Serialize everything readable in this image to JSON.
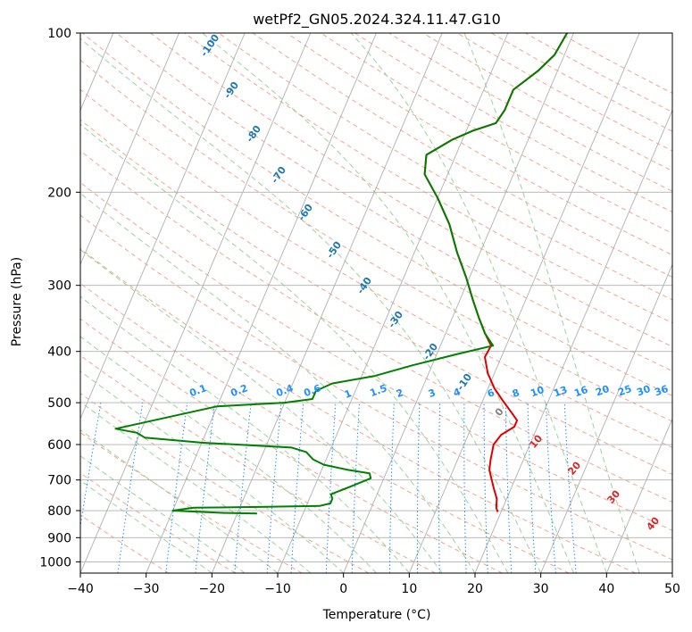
{
  "chart_data": {
    "type": "line",
    "title": "wetPf2_GN05.2024.324.11.47.G10",
    "xlabel": "Temperature (°C)",
    "ylabel": "Pressure (hPa)",
    "xlim": [
      -40,
      50
    ],
    "ylim": [
      1050,
      100
    ],
    "yscale": "log",
    "xticks": [
      -40,
      -30,
      -20,
      -10,
      0,
      10,
      20,
      30,
      40,
      50
    ],
    "yticks": [
      100,
      200,
      300,
      400,
      500,
      600,
      700,
      800,
      900,
      1000
    ],
    "grid": true,
    "skew_t": true,
    "series": [
      {
        "color": "#e00000",
        "points": [
          [
            19.5,
            805
          ],
          [
            19.0,
            790
          ],
          [
            18.5,
            760
          ],
          [
            17.5,
            730
          ],
          [
            16.5,
            700
          ],
          [
            15.5,
            670
          ],
          [
            15.0,
            640
          ],
          [
            14.5,
            600
          ],
          [
            15.0,
            575
          ],
          [
            16.5,
            555
          ],
          [
            16.5,
            540
          ],
          [
            15.0,
            520
          ],
          [
            13.0,
            495
          ],
          [
            11.0,
            470
          ],
          [
            9.0,
            440
          ],
          [
            7.5,
            410
          ],
          [
            7.7,
            390
          ],
          [
            6.0,
            370
          ],
          [
            4.0,
            345
          ],
          [
            2.0,
            320
          ],
          [
            -0.5,
            290
          ],
          [
            -3.5,
            260
          ],
          [
            -6.5,
            230
          ],
          [
            -10.0,
            205
          ],
          [
            -13.5,
            185
          ],
          [
            -14.5,
            170
          ],
          [
            -11.5,
            159
          ],
          [
            -9.0,
            153
          ],
          [
            -6.0,
            148
          ],
          [
            -5.5,
            140
          ],
          [
            -5.5,
            128
          ],
          [
            -3.0,
            118
          ],
          [
            -1.5,
            110
          ],
          [
            -1.0,
            100
          ]
        ]
      },
      {
        "color": "#008000",
        "points": [
          [
            -17.0,
            810
          ],
          [
            -22.0,
            808
          ],
          [
            -30.0,
            800
          ],
          [
            -27.0,
            790
          ],
          [
            -16.0,
            787
          ],
          [
            -8.0,
            784
          ],
          [
            -6.5,
            775
          ],
          [
            -6.5,
            760
          ],
          [
            -7.0,
            745
          ],
          [
            -4.5,
            720
          ],
          [
            -2.0,
            695
          ],
          [
            -2.5,
            680
          ],
          [
            -6.0,
            670
          ],
          [
            -10.0,
            655
          ],
          [
            -12.0,
            640
          ],
          [
            -13.5,
            620
          ],
          [
            -16.0,
            608
          ],
          [
            -30.0,
            595
          ],
          [
            -39.0,
            582
          ],
          [
            -40.5,
            570
          ],
          [
            -44.0,
            560
          ],
          [
            -30.0,
            508
          ],
          [
            -20.0,
            500
          ],
          [
            -16.0,
            492
          ],
          [
            -16.0,
            475
          ],
          [
            -14.0,
            460
          ],
          [
            -8.0,
            445
          ],
          [
            -3.0,
            425
          ],
          [
            3.0,
            405
          ],
          [
            8.0,
            390
          ],
          [
            6.0,
            370
          ],
          [
            4.0,
            345
          ],
          [
            2.0,
            320
          ],
          [
            -0.5,
            290
          ],
          [
            -3.5,
            260
          ],
          [
            -6.5,
            230
          ],
          [
            -10.0,
            205
          ],
          [
            -13.5,
            185
          ],
          [
            -14.5,
            170
          ],
          [
            -11.5,
            159
          ],
          [
            -9.0,
            153
          ],
          [
            -6.0,
            148
          ],
          [
            -5.5,
            140
          ],
          [
            -5.5,
            128
          ],
          [
            -3.0,
            118
          ],
          [
            -1.5,
            110
          ],
          [
            -1.0,
            100
          ]
        ]
      }
    ],
    "dry_adiabat_labels": [
      "-100",
      "-90",
      "-80",
      "-70",
      "-60",
      "-50",
      "-40",
      "-30",
      "-20",
      "-10"
    ],
    "mixing_ratio_labels": [
      "0.1",
      "0.2",
      "0.4",
      "0.6",
      "1",
      "1.5",
      "2",
      "3",
      "4",
      "6",
      "8",
      "10",
      "13",
      "16",
      "20",
      "25",
      "30",
      "36"
    ],
    "moist_adiabat_labels": [
      "0",
      "10",
      "20",
      "30",
      "40"
    ]
  },
  "colors": {
    "temperature": "#e00000",
    "dewpoint": "#008000",
    "grid": "#b0b0b0",
    "dry_adiabat": "#f4a58a",
    "moist_adiabat": "#9bd39b",
    "mixing_ratio": "#1e90ff"
  }
}
